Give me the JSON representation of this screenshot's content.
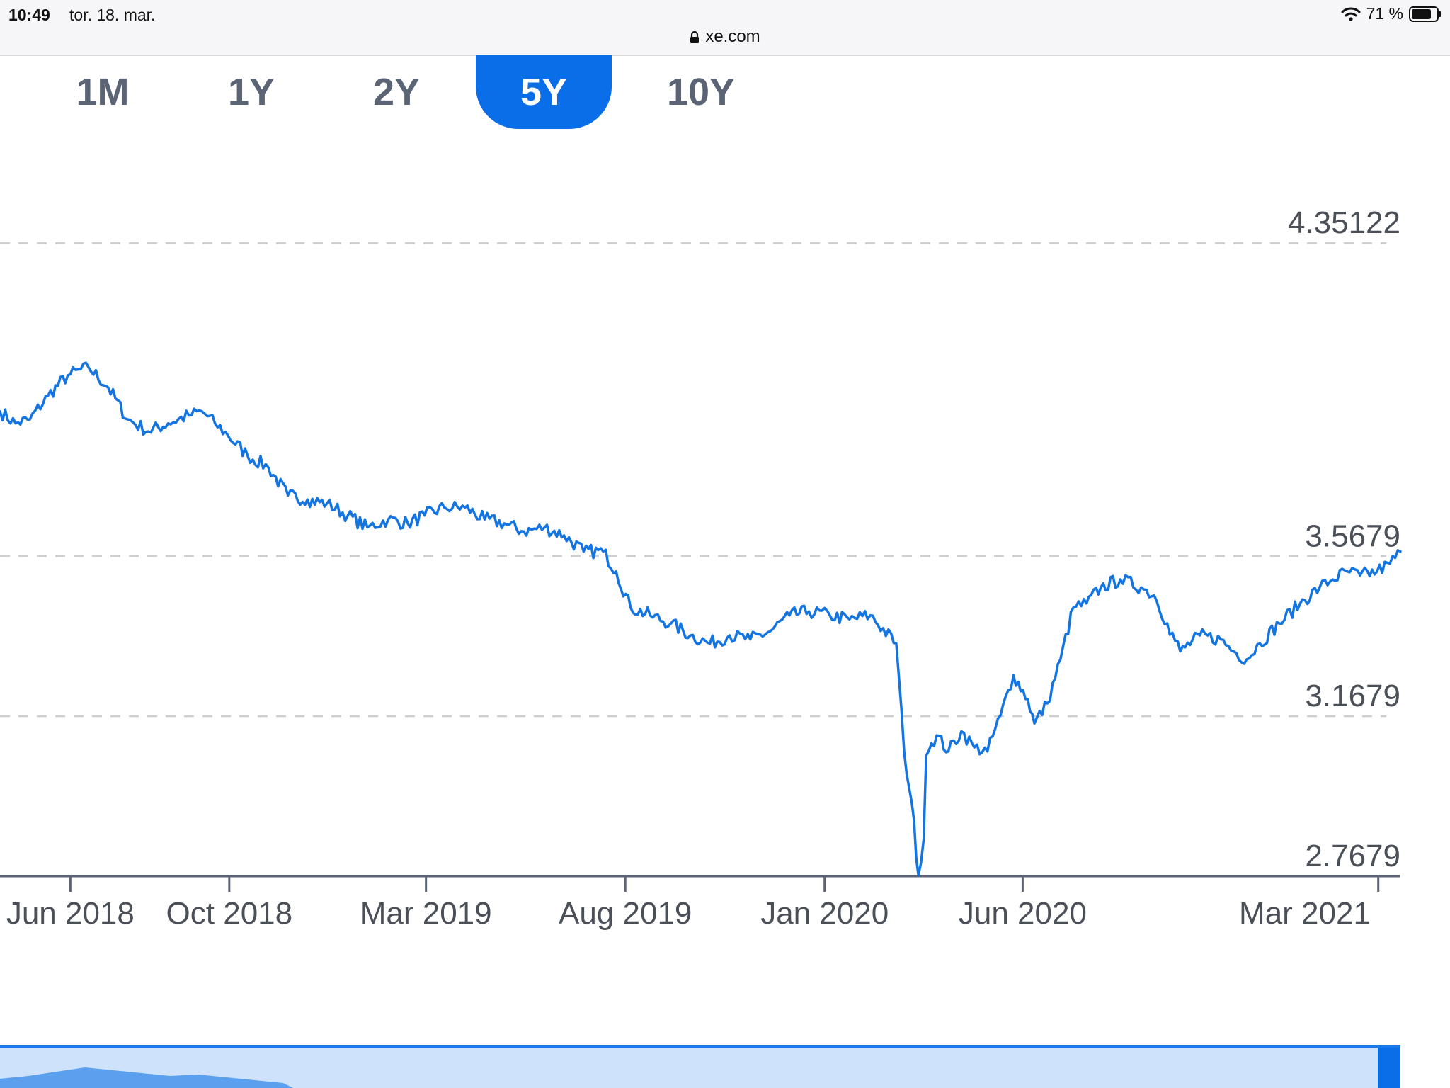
{
  "status_bar": {
    "time": "10:49",
    "date": "tor. 18. mar.",
    "url": "xe.com",
    "battery": "71 %"
  },
  "range_tabs": [
    {
      "label": "1M",
      "active": false
    },
    {
      "label": "1Y",
      "active": false
    },
    {
      "label": "2Y",
      "active": false
    },
    {
      "label": "5Y",
      "active": true
    },
    {
      "label": "10Y",
      "active": false
    }
  ],
  "colors": {
    "accent": "#0a6ee8",
    "line": "#1474e0",
    "grid": "#cfcfcf"
  },
  "chart_data": {
    "type": "line",
    "x_ticks": [
      "Jun 2018",
      "Oct 2018",
      "Mar 2019",
      "Aug 2019",
      "Jan 2020",
      "Jun 2020",
      "Mar 2021"
    ],
    "y_ticks": [
      4.35122,
      3.5679,
      3.1679,
      2.7679
    ],
    "y_tick_labels": [
      "4.35122",
      "3.5679",
      "3.1679",
      "2.7679"
    ],
    "ylim": [
      2.7679,
      4.35122
    ],
    "xlim": [
      "2018-04-08",
      "2021-03-18"
    ],
    "grid": "dashed horizontal",
    "series": [
      {
        "x": [
          "2018-04-08",
          "2018-04-20",
          "2018-05-01",
          "2018-05-15",
          "2018-05-30",
          "2018-06-15",
          "2018-06-30",
          "2018-07-15",
          "2018-07-31",
          "2018-08-15",
          "2018-08-31",
          "2018-09-10",
          "2018-09-20",
          "2018-09-30",
          "2018-10-15",
          "2018-10-31",
          "2018-11-15",
          "2018-11-30",
          "2018-12-15",
          "2018-12-31",
          "2019-01-15",
          "2019-01-31",
          "2019-02-15",
          "2019-02-28",
          "2019-03-15",
          "2019-03-31",
          "2019-04-15",
          "2019-04-30",
          "2019-05-15",
          "2019-05-31",
          "2019-06-15",
          "2019-06-30",
          "2019-07-15",
          "2019-07-25",
          "2019-08-05",
          "2019-08-20",
          "2019-09-05",
          "2019-09-20",
          "2019-10-05",
          "2019-10-20",
          "2019-11-05",
          "2019-11-20",
          "2019-12-05",
          "2019-12-20",
          "2020-01-05",
          "2020-01-20",
          "2020-02-05",
          "2020-02-25",
          "2020-03-02",
          "2020-03-08",
          "2020-03-13",
          "2020-03-17",
          "2020-03-19",
          "2020-03-23",
          "2020-03-27",
          "2020-04-05",
          "2020-04-15",
          "2020-04-25",
          "2020-05-05",
          "2020-05-15",
          "2020-05-25",
          "2020-06-05",
          "2020-06-10",
          "2020-06-20",
          "2020-06-30",
          "2020-07-10",
          "2020-07-20",
          "2020-07-31",
          "2020-08-15",
          "2020-08-31",
          "2020-09-10",
          "2020-09-20",
          "2020-09-30",
          "2020-10-15",
          "2020-10-31",
          "2020-11-10",
          "2020-11-20",
          "2020-11-30",
          "2020-12-15",
          "2020-12-31",
          "2021-01-15",
          "2021-01-25",
          "2021-02-05",
          "2021-02-15",
          "2021-02-28",
          "2021-03-10",
          "2021-03-18"
        ],
        "y": [
          3.93,
          3.9,
          3.91,
          3.97,
          4.02,
          4.04,
          3.99,
          3.91,
          3.88,
          3.9,
          3.92,
          3.93,
          3.9,
          3.87,
          3.82,
          3.79,
          3.72,
          3.71,
          3.7,
          3.67,
          3.64,
          3.66,
          3.65,
          3.67,
          3.69,
          3.69,
          3.66,
          3.65,
          3.63,
          3.64,
          3.62,
          3.58,
          3.58,
          3.53,
          3.44,
          3.42,
          3.4,
          3.37,
          3.35,
          3.37,
          3.36,
          3.38,
          3.42,
          3.43,
          3.42,
          3.41,
          3.42,
          3.35,
          3.08,
          2.95,
          2.77,
          2.86,
          3.07,
          3.1,
          3.12,
          3.08,
          3.13,
          3.09,
          3.08,
          3.17,
          3.27,
          3.21,
          3.15,
          3.2,
          3.31,
          3.44,
          3.45,
          3.49,
          3.51,
          3.49,
          3.47,
          3.4,
          3.33,
          3.37,
          3.36,
          3.33,
          3.31,
          3.35,
          3.4,
          3.45,
          3.49,
          3.51,
          3.53,
          3.52,
          3.53,
          3.55,
          3.58
        ]
      }
    ]
  }
}
